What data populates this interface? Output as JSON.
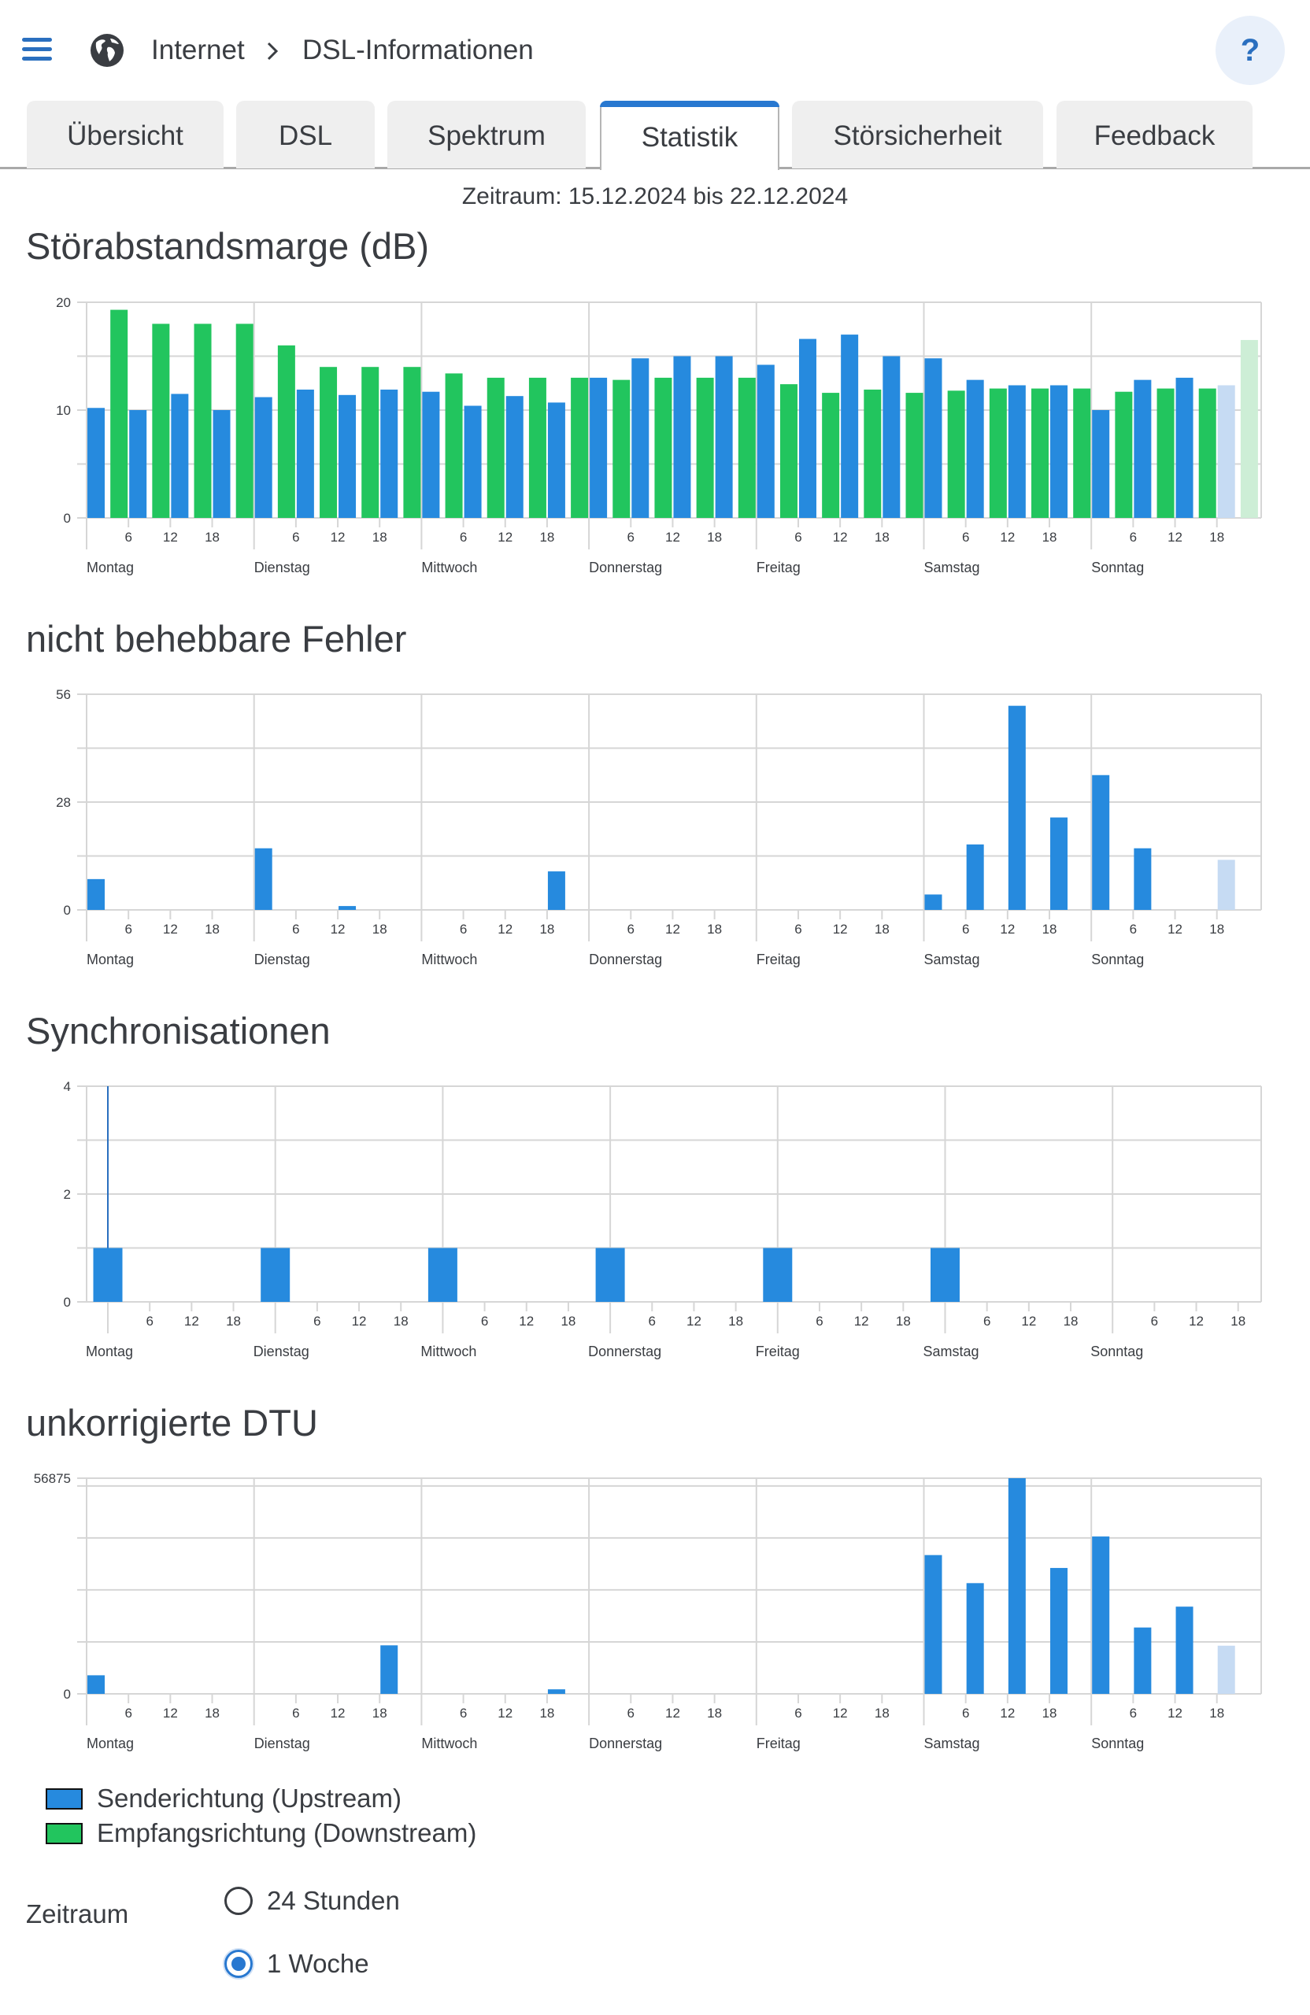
{
  "header": {
    "menu_icon": "hamburger-icon",
    "section_icon": "globe-icon",
    "breadcrumb": [
      "Internet",
      "DSL-Informationen"
    ],
    "separator_icon": "chevron-right-icon",
    "help_label": "?"
  },
  "tabs": [
    {
      "label": "Übersicht",
      "active": false
    },
    {
      "label": "DSL",
      "active": false
    },
    {
      "label": "Spektrum",
      "active": false
    },
    {
      "label": "Statistik",
      "active": true
    },
    {
      "label": "Störsicherheit",
      "active": false
    },
    {
      "label": "Feedback",
      "active": false
    }
  ],
  "period_text": "Zeitraum: 15.12.2024 bis 22.12.2024",
  "colors": {
    "upstream": "#268ade",
    "downstream": "#22c55e",
    "upstream_current": "#c6dbf3",
    "downstream_current": "#cdeed6",
    "accent": "#2878d0"
  },
  "chart_data": [
    {
      "type": "bar",
      "title": "Störabstandsmarge (dB)",
      "ylim": [
        0,
        20
      ],
      "yticks": [
        "20",
        "10",
        "0"
      ],
      "days": [
        "Montag",
        "Dienstag",
        "Mittwoch",
        "Donnerstag",
        "Freitag",
        "Samstag",
        "Sonntag"
      ],
      "hour_ticks": [
        "6",
        "12",
        "18"
      ],
      "grid": true,
      "series": [
        {
          "name": "Senderichtung (Upstream)",
          "color_key": "upstream",
          "values": [
            10.2,
            10.0,
            11.5,
            10.0,
            11.2,
            11.9,
            11.4,
            11.9,
            11.7,
            10.4,
            11.3,
            10.7,
            13.0,
            14.8,
            15.0,
            15.0,
            14.2,
            16.6,
            17.0,
            15.0,
            14.8,
            12.8,
            12.3,
            12.3,
            10.0,
            12.8,
            13.0,
            12.3
          ],
          "current_index": 27
        },
        {
          "name": "Empfangsrichtung (Downstream)",
          "color_key": "downstream",
          "values": [
            19.3,
            18.0,
            18.0,
            18.0,
            16.0,
            14.0,
            14.0,
            14.0,
            13.4,
            13.0,
            13.0,
            13.0,
            12.8,
            13.0,
            13.0,
            13.0,
            12.4,
            11.6,
            11.9,
            11.6,
            11.8,
            12.0,
            12.0,
            12.0,
            11.7,
            12.0,
            12.0,
            16.5
          ],
          "current_index": 27
        }
      ]
    },
    {
      "type": "bar",
      "title": "nicht behebbare Fehler",
      "ylim": [
        0,
        56
      ],
      "yticks": [
        "56",
        "28",
        "0"
      ],
      "days": [
        "Montag",
        "Dienstag",
        "Mittwoch",
        "Donnerstag",
        "Freitag",
        "Samstag",
        "Sonntag"
      ],
      "hour_ticks": [
        "6",
        "12",
        "18"
      ],
      "grid": true,
      "series": [
        {
          "name": "Senderichtung (Upstream)",
          "color_key": "upstream",
          "values": [
            8,
            0,
            0,
            0,
            16,
            0,
            1,
            0,
            0,
            0,
            0,
            10,
            0,
            0,
            0,
            0,
            0,
            0,
            0,
            0,
            4,
            17,
            53,
            24,
            35,
            16,
            0,
            13
          ],
          "current_index": 27
        }
      ]
    },
    {
      "type": "bar",
      "title": "Synchronisationen",
      "ylim": [
        0,
        4
      ],
      "yticks": [
        "4",
        "2",
        "0"
      ],
      "days": [
        "Montag",
        "Dienstag",
        "Mittwoch",
        "Donnerstag",
        "Freitag",
        "Samstag",
        "Sonntag"
      ],
      "hour_ticks": [
        "6",
        "12",
        "18"
      ],
      "grid": true,
      "marker_line": {
        "day_index": 0,
        "from": 1,
        "to": 4
      },
      "series": [
        {
          "name": "Senderichtung (Upstream)",
          "color_key": "upstream",
          "values": [
            1,
            1,
            1,
            1,
            1,
            1,
            0
          ]
        }
      ]
    },
    {
      "type": "bar",
      "title": "unkorrigierte DTU",
      "ylim": [
        0,
        56875
      ],
      "yticks": [
        "56875",
        "0"
      ],
      "days": [
        "Montag",
        "Dienstag",
        "Mittwoch",
        "Donnerstag",
        "Freitag",
        "Samstag",
        "Sonntag"
      ],
      "hour_ticks": [
        "6",
        "12",
        "18"
      ],
      "grid": true,
      "series": [
        {
          "name": "Senderichtung (Upstream)",
          "color_key": "upstream",
          "values": [
            4900,
            0,
            0,
            0,
            0,
            0,
            0,
            12800,
            0,
            0,
            0,
            1200,
            0,
            0,
            0,
            0,
            0,
            0,
            0,
            0,
            36600,
            29200,
            56875,
            33200,
            41500,
            17500,
            23000,
            12700
          ],
          "current_index": 27
        }
      ]
    }
  ],
  "legend": [
    {
      "label": "Senderichtung (Upstream)",
      "color_key": "upstream"
    },
    {
      "label": "Empfangsrichtung (Downstream)",
      "color_key": "downstream"
    }
  ],
  "period_selector": {
    "label": "Zeitraum",
    "options": [
      {
        "label": "24 Stunden",
        "selected": false
      },
      {
        "label": "1 Woche",
        "selected": true
      }
    ]
  }
}
